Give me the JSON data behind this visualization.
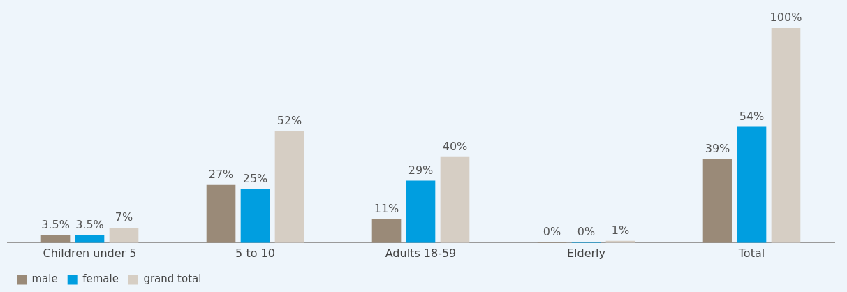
{
  "chart_data": {
    "type": "bar",
    "categories": [
      "Children under 5",
      "5 to 10",
      "Adults 18-59",
      "Elderly",
      "Total"
    ],
    "legend": "bottom left",
    "grid": false,
    "series": [
      {
        "name": "male",
        "color": "#9a8a78",
        "values": [
          3.5,
          27,
          11,
          0,
          39
        ],
        "value_labels": [
          "3.5%",
          "27%",
          "11%",
          "0%",
          "39%"
        ]
      },
      {
        "name": "female",
        "color": "#009ee0",
        "values": [
          3.5,
          25,
          29,
          0,
          54
        ],
        "value_labels": [
          "3.5%",
          "25%",
          "29%",
          "0%",
          "54%"
        ]
      },
      {
        "name": "grand total",
        "color": "#d6cec4",
        "values": [
          7,
          52,
          40,
          1,
          100
        ],
        "value_labels": [
          "7%",
          "52%",
          "40%",
          "1%",
          "100%"
        ]
      }
    ]
  }
}
